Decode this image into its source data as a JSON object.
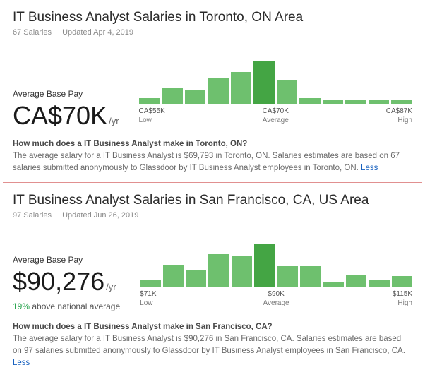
{
  "panels": [
    {
      "title": "IT Business Analyst Salaries in Toronto, ON Area",
      "salaries_count": "67 Salaries",
      "updated": "Updated Apr 4, 2019",
      "pay_label": "Average Base Pay",
      "pay_value": "CA$70K",
      "per_year": "/yr",
      "comparison_pct": "",
      "comparison_rest": "",
      "chart": {
        "bar_heights_pct": [
          10,
          30,
          26,
          48,
          58,
          78,
          44,
          10,
          8,
          6,
          6,
          6
        ],
        "bar_colors": [
          "#6ec06e",
          "#6ec06e",
          "#6ec06e",
          "#6ec06e",
          "#6ec06e",
          "#44a544",
          "#6ec06e",
          "#6ec06e",
          "#6ec06e",
          "#6ec06e",
          "#6ec06e",
          "#6ec06e"
        ],
        "axis_low_value": "CA$55K",
        "axis_low_label": "Low",
        "axis_mid_value": "CA$70K",
        "axis_mid_label": "Average",
        "axis_high_value": "CA$87K",
        "axis_high_label": "High"
      },
      "question": "How much does a IT Business Analyst make in Toronto, ON?",
      "answer": "The average salary for a IT Business Analyst is $69,793 in Toronto, ON. Salaries estimates are based on 67 salaries submitted anonymously to Glassdoor by IT Business Analyst employees in Toronto, ON. ",
      "less_label": "Less"
    },
    {
      "title": "IT Business Analyst Salaries in San Francisco, CA, US Area",
      "salaries_count": "97 Salaries",
      "updated": "Updated Jun 26, 2019",
      "pay_label": "Average Base Pay",
      "pay_value": "$90,276",
      "per_year": "/yr",
      "comparison_pct": "19%",
      "comparison_rest": " above national average",
      "chart": {
        "bar_heights_pct": [
          12,
          40,
          32,
          60,
          56,
          78,
          38,
          38,
          8,
          22,
          12,
          20
        ],
        "bar_colors": [
          "#6ec06e",
          "#6ec06e",
          "#6ec06e",
          "#6ec06e",
          "#6ec06e",
          "#44a544",
          "#6ec06e",
          "#6ec06e",
          "#6ec06e",
          "#6ec06e",
          "#6ec06e",
          "#6ec06e"
        ],
        "axis_low_value": "$71K",
        "axis_low_label": "Low",
        "axis_mid_value": "$90K",
        "axis_mid_label": "Average",
        "axis_high_value": "$115K",
        "axis_high_label": "High"
      },
      "question": "How much does a IT Business Analyst make in San Francisco, CA?",
      "answer": "The average salary for a IT Business Analyst is $90,276 in San Francisco, CA. Salaries estimates are based on 97 salaries submitted anonymously to Glassdoor by IT Business Analyst employees in San Francisco, CA. ",
      "less_label": "Less"
    }
  ]
}
